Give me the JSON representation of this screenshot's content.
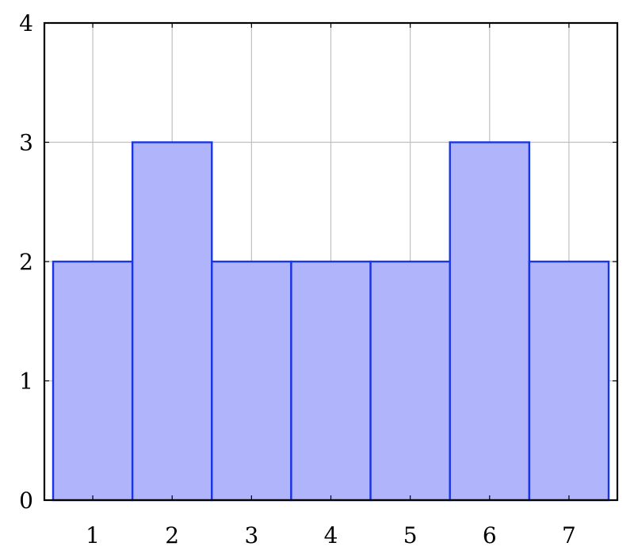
{
  "chart_data": {
    "type": "bar",
    "categories": [
      "1",
      "2",
      "3",
      "4",
      "5",
      "6",
      "7"
    ],
    "values": [
      2,
      3,
      2,
      2,
      2,
      3,
      2
    ],
    "title": "",
    "xlabel": "",
    "ylabel": "",
    "ylim": [
      0,
      4
    ],
    "yticks": [
      "0",
      "1",
      "2",
      "3",
      "4"
    ],
    "grid": true,
    "colors": {
      "fill": "#b0b4fa",
      "edge": "#1a35e6"
    }
  }
}
